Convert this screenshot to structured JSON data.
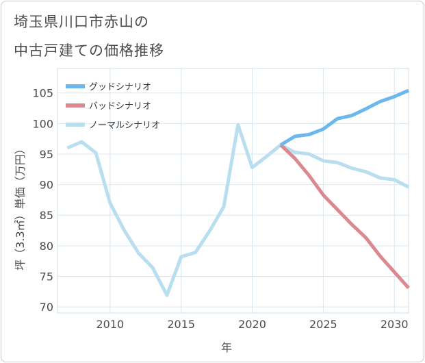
{
  "title_line1": "埼玉県川口市赤山の",
  "title_line2": "中古戸建ての価格推移",
  "chart_data": {
    "type": "line",
    "xlabel": "年",
    "ylabel": "坪（3.3㎡）単価（万円）",
    "xlim": [
      2006.3,
      2031
    ],
    "ylim": [
      69,
      109
    ],
    "x_ticks": [
      2010,
      2015,
      2020,
      2025,
      2030
    ],
    "y_ticks": [
      70,
      75,
      80,
      85,
      90,
      95,
      100,
      105
    ],
    "grid": true,
    "legend_position": "top-left",
    "series": [
      {
        "name": "グッドシナリオ",
        "color": "#6cb8ec",
        "points": [
          [
            2022,
            96.5
          ],
          [
            2023,
            97.9
          ],
          [
            2024,
            98.2
          ],
          [
            2025,
            99.1
          ],
          [
            2026,
            100.8
          ],
          [
            2027,
            101.3
          ],
          [
            2028,
            102.4
          ],
          [
            2029,
            103.6
          ],
          [
            2030,
            104.4
          ],
          [
            2031,
            105.4
          ]
        ]
      },
      {
        "name": "バッドシナリオ",
        "color": "#dc8890",
        "points": [
          [
            2022,
            96.5
          ],
          [
            2023,
            94.3
          ],
          [
            2024,
            91.5
          ],
          [
            2025,
            88.3
          ],
          [
            2026,
            85.9
          ],
          [
            2027,
            83.5
          ],
          [
            2028,
            81.3
          ],
          [
            2029,
            78.3
          ],
          [
            2030,
            75.7
          ],
          [
            2031,
            73.1
          ]
        ]
      },
      {
        "name": "ノーマルシナリオ",
        "color": "#b8def0",
        "points": [
          [
            2007,
            96.0
          ],
          [
            2008,
            97.0
          ],
          [
            2009,
            95.2
          ],
          [
            2010,
            87.0
          ],
          [
            2011,
            82.5
          ],
          [
            2012,
            78.8
          ],
          [
            2013,
            76.4
          ],
          [
            2014,
            71.9
          ],
          [
            2015,
            78.2
          ],
          [
            2016,
            78.9
          ],
          [
            2017,
            82.4
          ],
          [
            2018,
            86.4
          ],
          [
            2019,
            99.8
          ],
          [
            2020,
            92.8
          ],
          [
            2021,
            94.6
          ],
          [
            2022,
            96.5
          ],
          [
            2023,
            95.3
          ],
          [
            2024,
            95.0
          ],
          [
            2025,
            93.9
          ],
          [
            2026,
            93.6
          ],
          [
            2027,
            92.7
          ],
          [
            2028,
            92.1
          ],
          [
            2029,
            91.1
          ],
          [
            2030,
            90.8
          ],
          [
            2031,
            89.6
          ]
        ]
      }
    ]
  }
}
